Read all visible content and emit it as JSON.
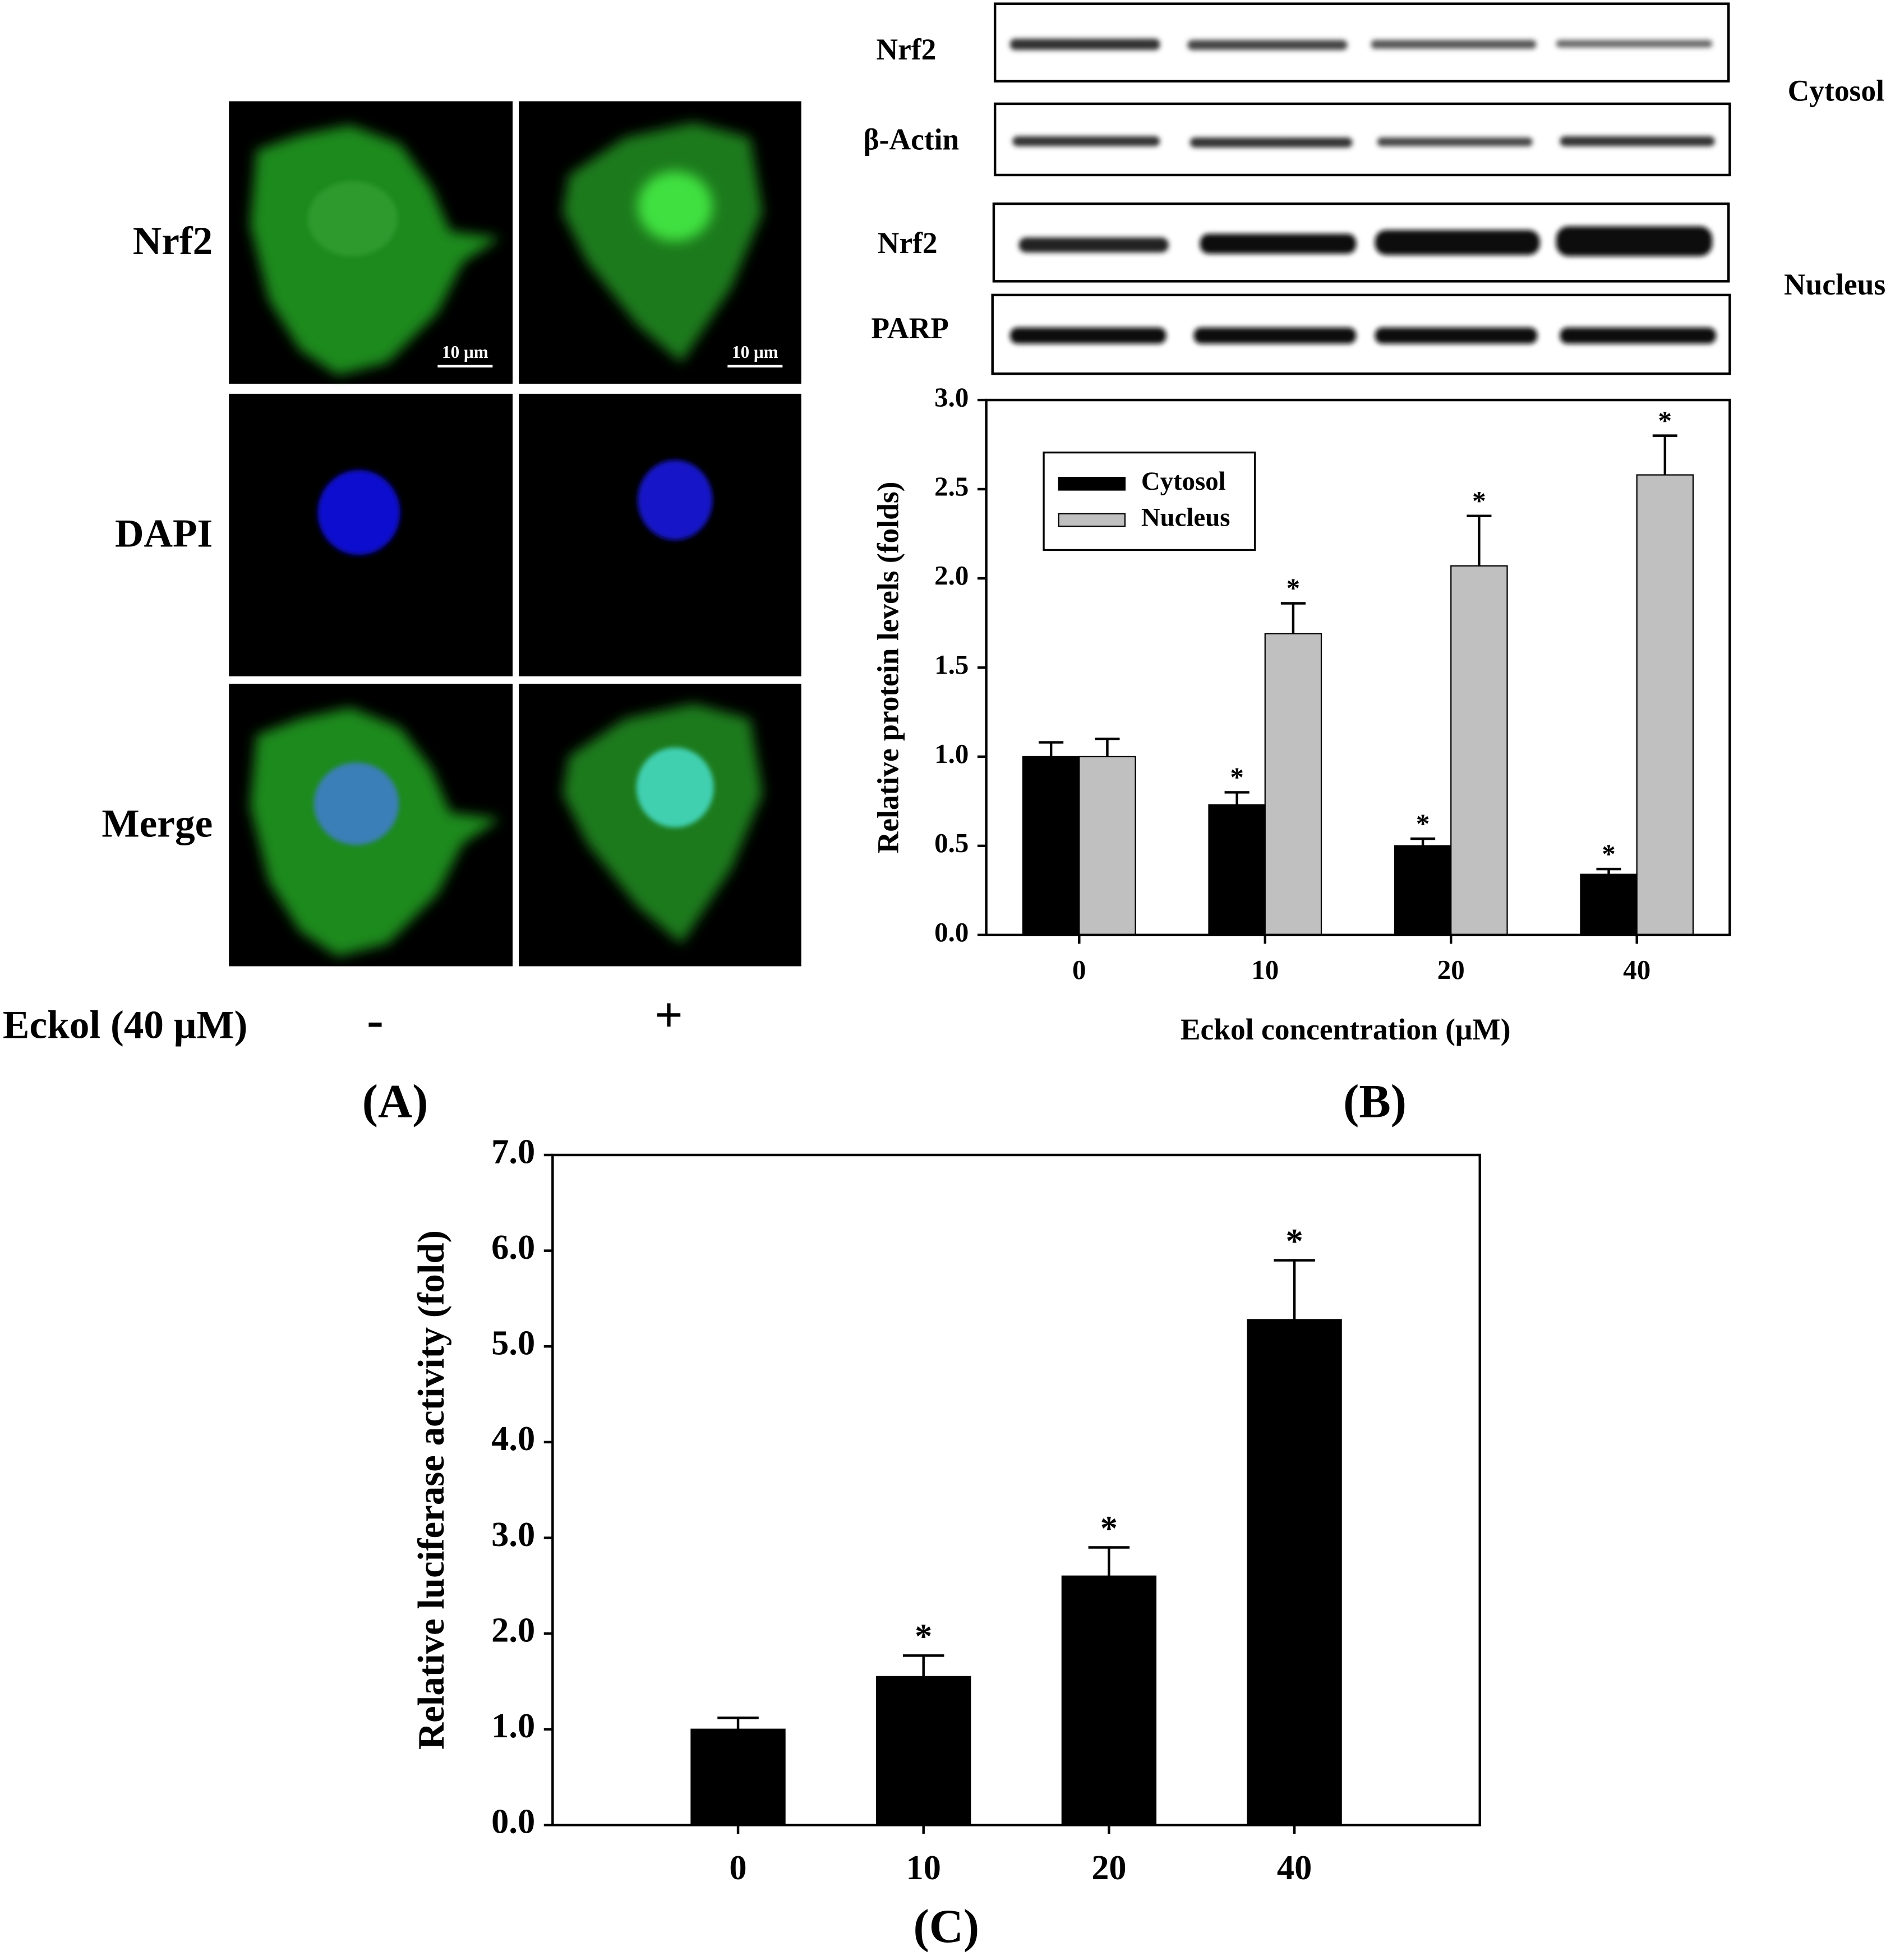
{
  "panel_a": {
    "row_labels": [
      "Nrf2",
      "DAPI",
      "Merge"
    ],
    "scale_bars": [
      "10 μm",
      "10 μm"
    ],
    "treatment_label": "Eckol (40 μM)",
    "treatment_signs": [
      "-",
      "+"
    ],
    "panel_label": "(A)"
  },
  "blots": {
    "rows": [
      "Nrf2",
      "β-Actin",
      "Nrf2",
      "PARP"
    ],
    "fractions": [
      "Cytosol",
      "Nucleus"
    ]
  },
  "chart_data": [
    {
      "type": "bar",
      "panel_label": "(B)",
      "x_label": "Eckol concentration (μM)",
      "y_label": "Relative protein levels (folds)",
      "categories": [
        "0",
        "10",
        "20",
        "40"
      ],
      "series": [
        {
          "name": "Cytosol",
          "color": "#000000",
          "values": [
            1.0,
            0.73,
            0.5,
            0.34
          ],
          "errors": [
            0.08,
            0.07,
            0.04,
            0.03
          ],
          "significance": [
            null,
            "*",
            "*",
            "*"
          ]
        },
        {
          "name": "Nucleus",
          "color": "#c0c0c0",
          "values": [
            1.0,
            1.69,
            2.07,
            2.58
          ],
          "errors": [
            0.1,
            0.17,
            0.28,
            0.22
          ],
          "significance": [
            null,
            "*",
            "*",
            "*"
          ]
        }
      ],
      "ylim": [
        0,
        3
      ],
      "yticks": [
        {
          "value": 0,
          "label": "0.0"
        },
        {
          "value": 0.5,
          "label": "0.5"
        },
        {
          "value": 1,
          "label": "1.0"
        },
        {
          "value": 1.5,
          "label": "1.5"
        },
        {
          "value": 2,
          "label": "2.0"
        },
        {
          "value": 2.5,
          "label": "2.5"
        },
        {
          "value": 3,
          "label": "3.0"
        }
      ],
      "legend": "upper left",
      "grid": false
    },
    {
      "type": "bar",
      "panel_label": "(C)",
      "y_label": "Relative luciferase activity (fold)",
      "categories": [
        "0",
        "10",
        "20",
        "40"
      ],
      "series": [
        {
          "color": "#000000",
          "values": [
            1.0,
            1.55,
            2.6,
            5.28
          ],
          "errors": [
            0.12,
            0.22,
            0.3,
            0.62
          ],
          "significance": [
            null,
            "*",
            "*",
            "*"
          ]
        }
      ],
      "ylim": [
        0,
        7
      ],
      "yticks": [
        {
          "value": 0,
          "label": "0.0"
        },
        {
          "value": 1,
          "label": "1.0"
        },
        {
          "value": 2,
          "label": "2.0"
        },
        {
          "value": 3,
          "label": "3.0"
        },
        {
          "value": 4,
          "label": "4.0"
        },
        {
          "value": 5,
          "label": "5.0"
        },
        {
          "value": 6,
          "label": "6.0"
        },
        {
          "value": 7,
          "label": "7.0"
        }
      ],
      "grid": false
    }
  ]
}
